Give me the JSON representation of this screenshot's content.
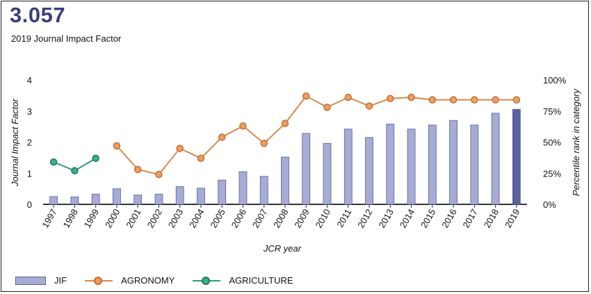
{
  "header": {
    "jif_value": "3.057",
    "jif_caption": "2019 Journal Impact Factor"
  },
  "chart_data": {
    "type": "bar",
    "categories": [
      "1997",
      "1998",
      "1999",
      "2000",
      "2001",
      "2002",
      "2003",
      "2004",
      "2005",
      "2006",
      "2007",
      "2008",
      "2009",
      "2010",
      "2011",
      "2012",
      "2013",
      "2014",
      "2015",
      "2016",
      "2017",
      "2018",
      "2019"
    ],
    "series": [
      {
        "name": "JIF",
        "type": "bar",
        "axis": "left",
        "color": "#a6acd2",
        "highlight_color": "#5c6398",
        "values": [
          0.25,
          0.24,
          0.33,
          0.5,
          0.3,
          0.33,
          0.57,
          0.52,
          0.78,
          1.05,
          0.9,
          1.52,
          2.28,
          1.96,
          2.42,
          2.15,
          2.58,
          2.42,
          2.55,
          2.7,
          2.55,
          2.93,
          3.057
        ]
      },
      {
        "name": "AGRONOMY",
        "type": "line",
        "axis": "right",
        "color": "#d9874b",
        "values": [
          null,
          null,
          null,
          47,
          28,
          24,
          45,
          37,
          54,
          63,
          49,
          65,
          87,
          78,
          86,
          79,
          85,
          86,
          84,
          84,
          84,
          84,
          84
        ]
      },
      {
        "name": "AGRICULTURE",
        "type": "line",
        "axis": "right",
        "color": "#2e9b78",
        "values": [
          34,
          27,
          37,
          null,
          null,
          null,
          null,
          null,
          null,
          null,
          null,
          null,
          null,
          null,
          null,
          null,
          null,
          null,
          null,
          null,
          null,
          null,
          null
        ]
      }
    ],
    "xlabel": "JCR year",
    "ylabel": "Journal Impact Factor",
    "ylabel_right": "Percentile rank in category",
    "ylim": [
      0,
      4
    ],
    "ylim_right": [
      0,
      100
    ],
    "yticks": [
      "0",
      "1",
      "2",
      "3",
      "4"
    ],
    "yticks_right": [
      "0%",
      "25%",
      "50%",
      "75%",
      "100%"
    ],
    "legend": {
      "position": "bottom-left",
      "items": [
        "JIF",
        "AGRONOMY",
        "AGRICULTURE"
      ]
    },
    "grid": false
  },
  "colors": {
    "bar_border": "#5a5f9a",
    "axis": "#333333",
    "agronomy": "#d9874b",
    "agriculture": "#2e9b78"
  }
}
